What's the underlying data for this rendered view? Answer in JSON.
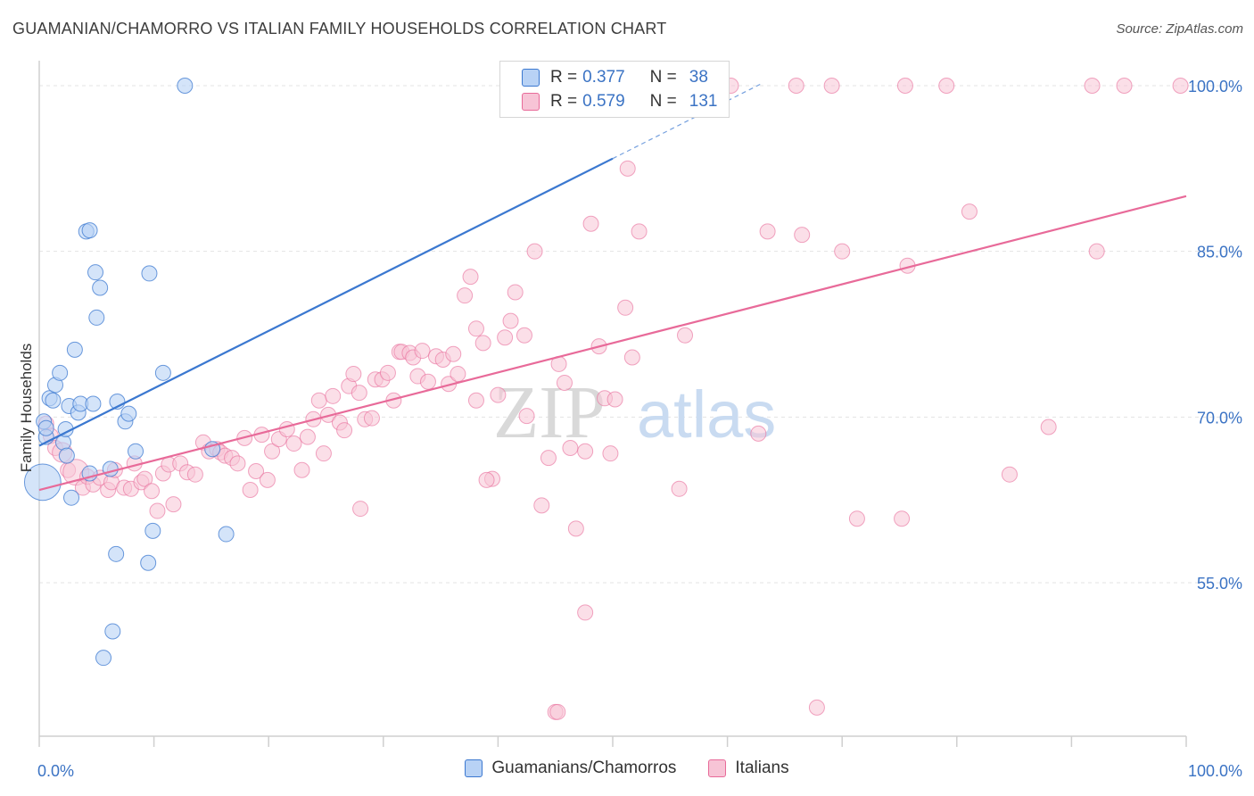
{
  "header": {
    "title": "GUAMANIAN/CHAMORRO VS ITALIAN FAMILY HOUSEHOLDS CORRELATION CHART",
    "source": "Source: ZipAtlas.com"
  },
  "legend": {
    "r_label": "R =",
    "n_label": "N =",
    "rows": [
      {
        "r": "0.377",
        "n": "38"
      },
      {
        "r": "0.579",
        "n": "131"
      }
    ]
  },
  "watermark": {
    "zip": "ZIP",
    "atlas": "atlas"
  },
  "colors": {
    "blue": "#3b78d0",
    "blue_fill": "#b8d2f5",
    "pink": "#e86a99",
    "pink_fill": "#f7c4d6",
    "axis_text": "#3b73c4"
  },
  "chart_data": {
    "type": "scatter",
    "title": "GUAMANIAN/CHAMORRO VS ITALIAN FAMILY HOUSEHOLDS CORRELATION CHART",
    "xlabel": "",
    "ylabel": "Family Households",
    "xlim": [
      0,
      100
    ],
    "ylim": [
      40,
      101.5
    ],
    "x_tick_labels": [
      "0.0%",
      "100.0%"
    ],
    "y_ticks": [
      55,
      70,
      85,
      100
    ],
    "y_tick_labels": [
      "55.0%",
      "70.0%",
      "85.0%",
      "100.0%"
    ],
    "grid": true,
    "legend_position": "top-center",
    "series": [
      {
        "name": "Guamanians/Chamorros",
        "color": "#3b78d0",
        "R": 0.377,
        "N": 38,
        "trend": {
          "x0": 0,
          "y0": 67.4,
          "x1": 50,
          "y1": 93.4,
          "dash_to_x": 63,
          "dash_to_y": 100.2
        },
        "points": [
          [
            0.3,
            64.1,
            2.4
          ],
          [
            0.4,
            69.6,
            1
          ],
          [
            0.6,
            68.2,
            1
          ],
          [
            0.9,
            71.7,
            1
          ],
          [
            1.2,
            71.5,
            1
          ],
          [
            1.4,
            72.9,
            1
          ],
          [
            1.8,
            74.0,
            1
          ],
          [
            2.1,
            67.7,
            1
          ],
          [
            2.3,
            68.9,
            1
          ],
          [
            2.4,
            66.5,
            1
          ],
          [
            2.6,
            71.0,
            1
          ],
          [
            2.8,
            62.7,
            1
          ],
          [
            3.1,
            76.1,
            1
          ],
          [
            3.4,
            70.4,
            1
          ],
          [
            3.6,
            71.2,
            1
          ],
          [
            4.1,
            86.8,
            1
          ],
          [
            4.4,
            86.9,
            1
          ],
          [
            4.4,
            64.9,
            1
          ],
          [
            4.7,
            71.2,
            1
          ],
          [
            4.9,
            83.1,
            1
          ],
          [
            5.0,
            79.0,
            1
          ],
          [
            5.3,
            81.7,
            1
          ],
          [
            5.6,
            48.2,
            1
          ],
          [
            6.2,
            65.3,
            1
          ],
          [
            6.4,
            50.6,
            1
          ],
          [
            6.7,
            57.6,
            1
          ],
          [
            6.8,
            71.4,
            1
          ],
          [
            7.5,
            69.6,
            1
          ],
          [
            7.8,
            70.3,
            1
          ],
          [
            8.4,
            66.9,
            1
          ],
          [
            9.5,
            56.8,
            1
          ],
          [
            9.6,
            83.0,
            1
          ],
          [
            9.9,
            59.7,
            1
          ],
          [
            10.8,
            74.0,
            1
          ],
          [
            12.7,
            100.0,
            1
          ],
          [
            15.1,
            67.1,
            1
          ],
          [
            16.3,
            59.4,
            1
          ],
          [
            0.6,
            69.0,
            1
          ]
        ]
      },
      {
        "name": "Italians",
        "color": "#e86a99",
        "R": 0.579,
        "N": 131,
        "trend": {
          "x0": 0,
          "y0": 63.4,
          "x1": 100,
          "y1": 90.0
        },
        "points": [
          [
            0.6,
            69.4,
            1
          ],
          [
            1.0,
            68.3,
            1
          ],
          [
            1.4,
            67.2,
            1
          ],
          [
            2.0,
            66.8,
            1.3
          ],
          [
            2.5,
            65.2,
            1
          ],
          [
            3.2,
            65.0,
            1.7
          ],
          [
            3.8,
            63.6,
            1
          ],
          [
            4.2,
            64.6,
            1
          ],
          [
            4.7,
            63.9,
            1
          ],
          [
            5.3,
            64.5,
            1
          ],
          [
            6.0,
            63.4,
            1
          ],
          [
            6.3,
            64.1,
            1
          ],
          [
            6.6,
            65.2,
            1
          ],
          [
            7.4,
            63.6,
            1
          ],
          [
            8.0,
            63.5,
            1
          ],
          [
            8.3,
            65.8,
            1
          ],
          [
            8.9,
            64.1,
            1
          ],
          [
            9.2,
            64.4,
            1
          ],
          [
            9.8,
            63.3,
            1
          ],
          [
            10.3,
            61.5,
            1
          ],
          [
            10.8,
            64.9,
            1
          ],
          [
            11.3,
            65.7,
            1
          ],
          [
            11.7,
            62.1,
            1
          ],
          [
            12.3,
            65.8,
            1
          ],
          [
            12.9,
            65.0,
            1
          ],
          [
            13.6,
            64.8,
            1
          ],
          [
            14.3,
            67.7,
            1
          ],
          [
            14.8,
            66.9,
            1
          ],
          [
            15.5,
            67.1,
            1
          ],
          [
            15.8,
            66.8,
            1
          ],
          [
            16.2,
            66.5,
            1
          ],
          [
            16.8,
            66.3,
            1
          ],
          [
            17.3,
            65.8,
            1
          ],
          [
            17.9,
            68.1,
            1
          ],
          [
            18.4,
            63.4,
            1
          ],
          [
            18.9,
            65.1,
            1
          ],
          [
            19.4,
            68.4,
            1
          ],
          [
            19.9,
            64.3,
            1
          ],
          [
            20.3,
            66.9,
            1
          ],
          [
            20.9,
            68.0,
            1
          ],
          [
            21.6,
            68.9,
            1
          ],
          [
            22.2,
            67.6,
            1
          ],
          [
            22.9,
            65.2,
            1
          ],
          [
            23.4,
            68.2,
            1
          ],
          [
            23.9,
            69.8,
            1
          ],
          [
            24.4,
            71.5,
            1
          ],
          [
            24.8,
            66.7,
            1
          ],
          [
            25.2,
            70.2,
            1
          ],
          [
            25.6,
            71.9,
            1
          ],
          [
            26.2,
            69.5,
            1
          ],
          [
            26.6,
            68.8,
            1
          ],
          [
            27.0,
            72.8,
            1
          ],
          [
            27.4,
            73.9,
            1
          ],
          [
            27.9,
            72.2,
            1
          ],
          [
            28.4,
            69.8,
            1
          ],
          [
            29.0,
            69.9,
            1
          ],
          [
            29.3,
            73.4,
            1
          ],
          [
            29.9,
            73.4,
            1
          ],
          [
            30.4,
            74.0,
            1
          ],
          [
            30.9,
            71.5,
            1
          ],
          [
            31.4,
            75.9,
            1
          ],
          [
            31.6,
            75.9,
            1
          ],
          [
            32.3,
            75.8,
            1
          ],
          [
            32.6,
            75.4,
            1
          ],
          [
            33.0,
            73.7,
            1
          ],
          [
            33.4,
            76.0,
            1
          ],
          [
            33.9,
            73.2,
            1
          ],
          [
            34.6,
            75.5,
            1
          ],
          [
            35.2,
            75.2,
            1
          ],
          [
            35.7,
            73.0,
            1
          ],
          [
            36.1,
            75.7,
            1
          ],
          [
            36.5,
            73.9,
            1
          ],
          [
            37.1,
            81.0,
            1
          ],
          [
            37.6,
            82.7,
            1
          ],
          [
            38.1,
            78.0,
            1
          ],
          [
            38.7,
            76.7,
            1
          ],
          [
            38.1,
            71.5,
            1
          ],
          [
            39.5,
            64.4,
            1
          ],
          [
            40.0,
            72.0,
            1
          ],
          [
            40.6,
            77.2,
            1
          ],
          [
            41.1,
            78.7,
            1
          ],
          [
            41.5,
            81.3,
            1
          ],
          [
            42.3,
            77.4,
            1
          ],
          [
            42.5,
            70.1,
            1
          ],
          [
            43.2,
            85.0,
            1
          ],
          [
            43.8,
            62.0,
            1
          ],
          [
            44.4,
            66.3,
            1
          ],
          [
            45.3,
            74.8,
            1
          ],
          [
            45.8,
            73.1,
            1
          ],
          [
            46.3,
            67.2,
            1
          ],
          [
            46.8,
            59.9,
            1
          ],
          [
            47.6,
            66.9,
            1
          ],
          [
            48.1,
            87.5,
            1
          ],
          [
            48.8,
            76.4,
            1
          ],
          [
            49.3,
            71.7,
            1
          ],
          [
            49.5,
            100.0,
            1
          ],
          [
            49.8,
            66.7,
            1
          ],
          [
            50.2,
            71.6,
            1
          ],
          [
            51.3,
            92.5,
            1
          ],
          [
            51.7,
            75.4,
            1
          ],
          [
            52.3,
            86.8,
            1
          ],
          [
            51.1,
            79.9,
            1
          ],
          [
            52.7,
            100.0,
            1
          ],
          [
            55.8,
            63.5,
            1
          ],
          [
            56.3,
            77.4,
            1
          ],
          [
            58.8,
            100.0,
            1
          ],
          [
            60.3,
            100.0,
            1
          ],
          [
            62.7,
            68.5,
            1
          ],
          [
            63.5,
            86.8,
            1
          ],
          [
            66.0,
            100.0,
            1
          ],
          [
            66.5,
            86.5,
            1
          ],
          [
            67.8,
            43.7,
            1
          ],
          [
            69.1,
            100.0,
            1
          ],
          [
            70.0,
            85.0,
            1
          ],
          [
            71.3,
            60.8,
            1
          ],
          [
            75.5,
            100.0,
            1
          ],
          [
            75.2,
            60.8,
            1
          ],
          [
            75.7,
            83.7,
            1
          ],
          [
            79.1,
            100.0,
            1
          ],
          [
            81.1,
            88.6,
            1
          ],
          [
            84.6,
            64.8,
            1
          ],
          [
            88.0,
            69.1,
            1
          ],
          [
            91.8,
            100.0,
            1
          ],
          [
            92.2,
            85.0,
            1
          ],
          [
            94.6,
            100.0,
            1
          ],
          [
            99.5,
            100.0,
            1
          ],
          [
            47.6,
            52.3,
            1
          ],
          [
            45.0,
            43.3,
            1
          ],
          [
            45.2,
            43.3,
            1
          ],
          [
            39.0,
            64.3,
            1
          ],
          [
            28.0,
            61.7,
            1
          ]
        ]
      }
    ]
  },
  "bottom_legend": [
    {
      "label": "Guamanians/Chamorros"
    },
    {
      "label": "Italians"
    }
  ]
}
